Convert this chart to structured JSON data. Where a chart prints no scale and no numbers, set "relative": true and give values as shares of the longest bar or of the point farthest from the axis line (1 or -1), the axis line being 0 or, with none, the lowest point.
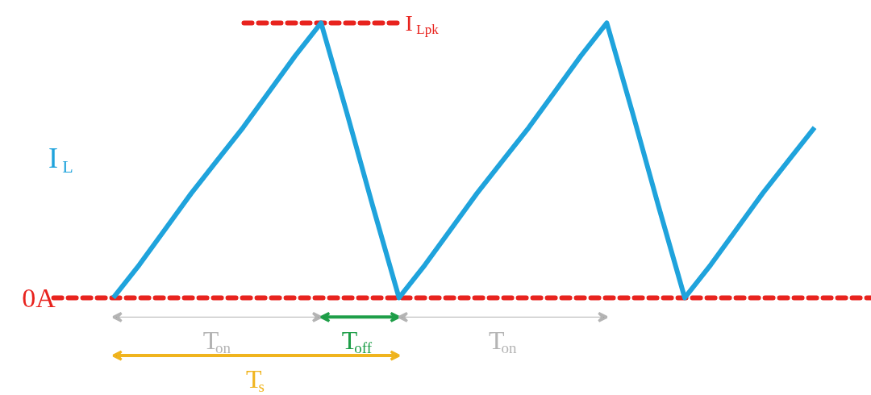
{
  "chart_data": {
    "type": "line",
    "relative": true,
    "tick_labels": false,
    "grid": false,
    "marker": "none",
    "line_style": "solid",
    "categories": [
      null,
      null,
      null,
      null,
      null,
      null,
      null,
      null,
      null,
      null,
      null,
      null,
      null,
      null,
      null,
      null,
      null,
      null,
      null,
      null,
      null,
      null,
      null,
      null,
      null,
      null,
      null,
      null
    ],
    "series": [
      {
        "name": "I$_{L}$",
        "color": "#1fa3dc",
        "values": [
          0,
          0.12,
          0.25,
          0.38,
          0.5,
          0.62,
          0.75,
          0.88,
          1,
          0.67,
          0.33,
          0,
          0.12,
          0.25,
          0.38,
          0.5,
          0.62,
          0.75,
          0.88,
          1,
          0.67,
          0.33,
          0,
          0.12,
          0.25,
          0.38,
          0.5,
          0.62
        ]
      }
    ],
    "ref_lines": [
      {
        "axis": "y",
        "value": 0,
        "label": "0A",
        "color": "#e8231e",
        "line_style": "dashed"
      },
      {
        "axis": "y",
        "value": 1,
        "label": "I$_{Lpk}$",
        "color": "#e8231e",
        "line_style": "dashed"
      }
    ],
    "annotations": [
      "T$_{on}$",
      "T$_{off}$",
      "T$_{on}$",
      "T$_{s}$"
    ]
  }
}
